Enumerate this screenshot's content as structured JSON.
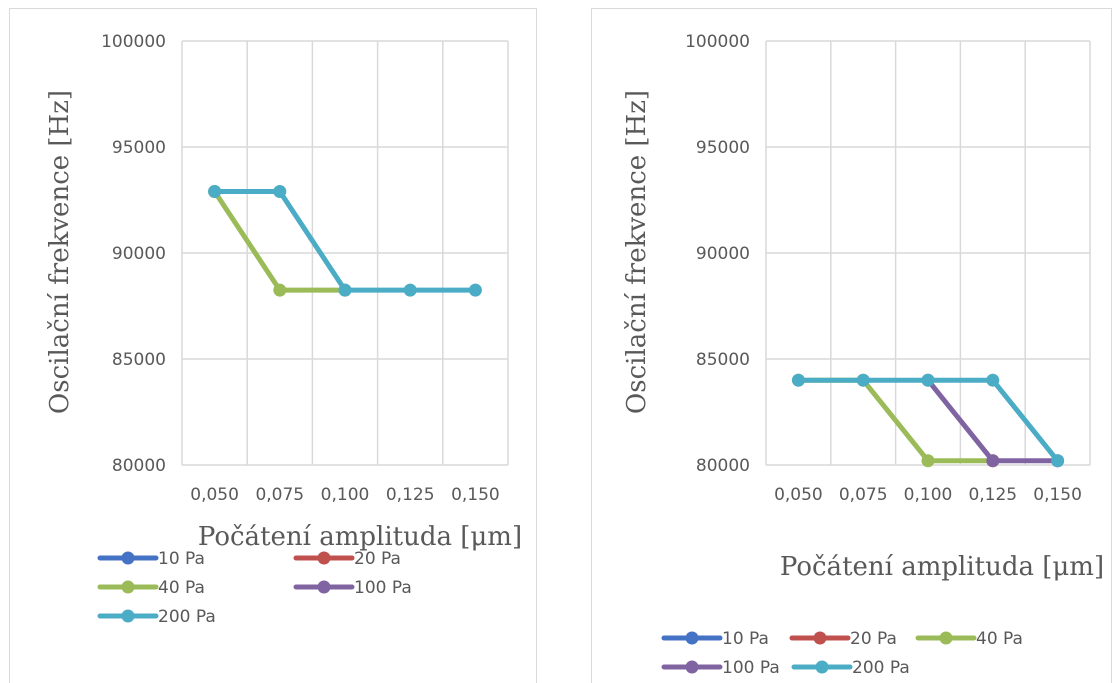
{
  "chart_data": [
    {
      "type": "line",
      "xlabel": "Počátení amplituda [μm]",
      "ylabel": "Oscilační frekvence [Hz]",
      "categories": [
        "0,050",
        "0,075",
        "0,100",
        "0,125",
        "0,150"
      ],
      "y_ticks": [
        "80000",
        "85000",
        "90000",
        "95000",
        "100000"
      ],
      "ylim": [
        80000,
        100000
      ],
      "grid": true,
      "legend_position": "bottom",
      "series": [
        {
          "name": "10 Pa",
          "color": "#4472C4",
          "values": [
            null,
            null,
            null,
            null,
            null
          ]
        },
        {
          "name": "20 Pa",
          "color": "#C0504D",
          "values": [
            null,
            null,
            null,
            null,
            null
          ]
        },
        {
          "name": "40 Pa",
          "color": "#9BBB59",
          "values": [
            92900,
            88250,
            88250,
            null,
            null
          ]
        },
        {
          "name": "100 Pa",
          "color": "#8064A2",
          "values": [
            null,
            null,
            null,
            null,
            null
          ]
        },
        {
          "name": "200 Pa",
          "color": "#4BACC6",
          "values": [
            92900,
            92900,
            88250,
            88250,
            88250
          ]
        }
      ]
    },
    {
      "type": "line",
      "xlabel": "Počátení amplituda [μm]",
      "ylabel": "Oscilační frekvence [Hz]",
      "categories": [
        "0,050",
        "0,075",
        "0,100",
        "0,125",
        "0,150"
      ],
      "y_ticks": [
        "80000",
        "85000",
        "90000",
        "95000",
        "100000"
      ],
      "ylim": [
        80000,
        100000
      ],
      "grid": true,
      "legend_position": "bottom",
      "series": [
        {
          "name": "10 Pa",
          "color": "#4472C4",
          "values": [
            null,
            null,
            null,
            null,
            null
          ]
        },
        {
          "name": "20 Pa",
          "color": "#C0504D",
          "values": [
            null,
            null,
            null,
            null,
            null
          ]
        },
        {
          "name": "40 Pa",
          "color": "#9BBB59",
          "values": [
            84000,
            84000,
            80200,
            80200,
            null
          ]
        },
        {
          "name": "100 Pa",
          "color": "#8064A2",
          "values": [
            null,
            null,
            84000,
            80200,
            80200
          ]
        },
        {
          "name": "200 Pa",
          "color": "#4BACC6",
          "values": [
            84000,
            84000,
            84000,
            84000,
            80200
          ]
        }
      ]
    }
  ]
}
